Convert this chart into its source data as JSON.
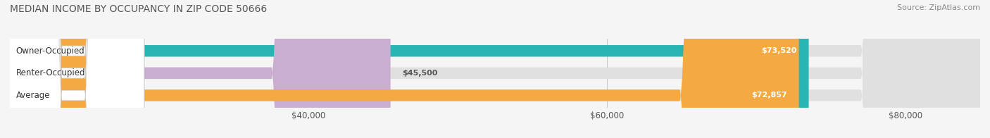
{
  "title": "MEDIAN INCOME BY OCCUPANCY IN ZIP CODE 50666",
  "source": "Source: ZipAtlas.com",
  "categories": [
    "Owner-Occupied",
    "Renter-Occupied",
    "Average"
  ],
  "values": [
    73520,
    45500,
    72857
  ],
  "bar_colors": [
    "#2ab5b5",
    "#c9aed0",
    "#f5a942"
  ],
  "value_labels": [
    "$73,520",
    "$45,500",
    "$72,857"
  ],
  "xlim": [
    20000,
    85000
  ],
  "xticks": [
    40000,
    60000,
    80000
  ],
  "xtick_labels": [
    "$40,000",
    "$60,000",
    "$80,000"
  ],
  "title_fontsize": 10,
  "bar_height": 0.52,
  "background_color": "#f5f5f5",
  "bar_bg_color": "#e0e0e0"
}
